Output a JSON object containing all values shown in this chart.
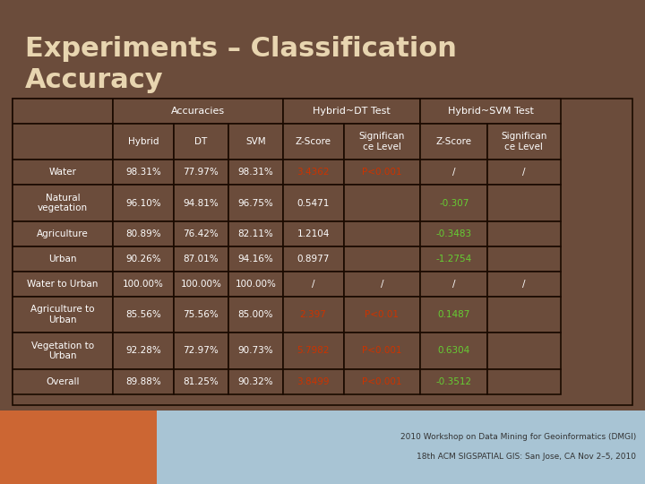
{
  "title_line1": "Experiments – Classification",
  "title_line2": "Accuracy",
  "title_color": "#e8d5b0",
  "bg_color": "#6b4c3b",
  "border_color": "#1a0a00",
  "header_text_color": "#ffffff",
  "cell_text_color": "#ffffff",
  "red_text_color": "#cc3300",
  "green_text_color": "#66cc33",
  "footer_bg": "#a8c4d4",
  "footer_orange": "#cc6633",
  "rows": [
    {
      "label": "Water",
      "hybrid": "98.31%",
      "dt": "77.97%",
      "svm": "98.31%",
      "dt_zscore": "3.4362",
      "dt_sig": "P<0.001",
      "svm_zscore": "/",
      "svm_sig": "/",
      "dt_zscore_red": true,
      "dt_sig_red": true,
      "svm_zscore_green": false
    },
    {
      "label": "Natural\nvegetation",
      "hybrid": "96.10%",
      "dt": "94.81%",
      "svm": "96.75%",
      "dt_zscore": "0.5471",
      "dt_sig": "",
      "svm_zscore": "-0.307",
      "svm_sig": "",
      "dt_zscore_red": false,
      "dt_sig_red": false,
      "svm_zscore_green": true
    },
    {
      "label": "Agriculture",
      "hybrid": "80.89%",
      "dt": "76.42%",
      "svm": "82.11%",
      "dt_zscore": "1.2104",
      "dt_sig": "",
      "svm_zscore": "-0.3483",
      "svm_sig": "",
      "dt_zscore_red": false,
      "dt_sig_red": false,
      "svm_zscore_green": true
    },
    {
      "label": "Urban",
      "hybrid": "90.26%",
      "dt": "87.01%",
      "svm": "94.16%",
      "dt_zscore": "0.8977",
      "dt_sig": "",
      "svm_zscore": "-1.2754",
      "svm_sig": "",
      "dt_zscore_red": false,
      "dt_sig_red": false,
      "svm_zscore_green": true
    },
    {
      "label": "Water to Urban",
      "hybrid": "100.00%",
      "dt": "100.00%",
      "svm": "100.00%",
      "dt_zscore": "/",
      "dt_sig": "/",
      "svm_zscore": "/",
      "svm_sig": "/",
      "dt_zscore_red": false,
      "dt_sig_red": false,
      "svm_zscore_green": false
    },
    {
      "label": "Agriculture to\nUrban",
      "hybrid": "85.56%",
      "dt": "75.56%",
      "svm": "85.00%",
      "dt_zscore": "2.397",
      "dt_sig": "P<0.01",
      "svm_zscore": "0.1487",
      "svm_sig": "",
      "dt_zscore_red": true,
      "dt_sig_red": true,
      "svm_zscore_green": true
    },
    {
      "label": "Vegetation to\nUrban",
      "hybrid": "92.28%",
      "dt": "72.97%",
      "svm": "90.73%",
      "dt_zscore": "5.7982",
      "dt_sig": "P<0.001",
      "svm_zscore": "0.6304",
      "svm_sig": "",
      "dt_zscore_red": true,
      "dt_sig_red": true,
      "svm_zscore_green": true
    },
    {
      "label": "Overall",
      "hybrid": "89.88%",
      "dt": "81.25%",
      "svm": "90.32%",
      "dt_zscore": "3.8499",
      "dt_sig": "P<0.001",
      "svm_zscore": "-0.3512",
      "svm_sig": "",
      "dt_zscore_red": true,
      "dt_sig_red": true,
      "svm_zscore_green": true
    }
  ],
  "footer_text1": "2010 Workshop on Data Mining for Geoinformatics (DMGI)",
  "footer_text2": "18th ACM SIGSPATIAL GIS: San Jose, CA Nov 2–5, 2010"
}
